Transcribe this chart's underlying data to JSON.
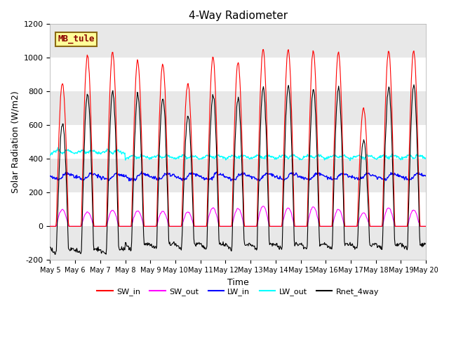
{
  "title": "4-Way Radiometer",
  "xlabel": "Time",
  "ylabel": "Solar Radiation (W/m2)",
  "ylim": [
    -200,
    1200
  ],
  "station_label": "MB_tule",
  "x_tick_labels": [
    "May 5",
    "May 6",
    "May 7",
    "May 8",
    "May 9",
    "May 10",
    "May 11",
    "May 12",
    "May 13",
    "May 14",
    "May 15",
    "May 16",
    "May 17",
    "May 18",
    "May 19",
    "May 20"
  ],
  "yticks": [
    -200,
    0,
    200,
    400,
    600,
    800,
    1000,
    1200
  ],
  "series_colors": {
    "SW_in": "#ff0000",
    "SW_out": "#ff00ff",
    "LW_in": "#0000ff",
    "LW_out": "#00ffff",
    "Rnet_4way": "#000000"
  },
  "legend_labels": [
    "SW_in",
    "SW_out",
    "LW_in",
    "LW_out",
    "Rnet_4way"
  ],
  "fig_bg_color": "#ffffff",
  "plot_bg_color": "#ffffff",
  "band_colors": [
    "#e8e8e8",
    "#ffffff"
  ],
  "n_days": 15,
  "points_per_day": 48,
  "sw_in_peaks": [
    850,
    1010,
    1030,
    980,
    960,
    850,
    1000,
    970,
    1050,
    1050,
    1040,
    1030,
    700,
    1040,
    1040
  ],
  "sw_out_peaks": [
    100,
    85,
    95,
    90,
    90,
    85,
    110,
    105,
    120,
    110,
    115,
    100,
    80,
    110,
    95
  ],
  "lw_in_base": 295,
  "lw_out_base": 400
}
